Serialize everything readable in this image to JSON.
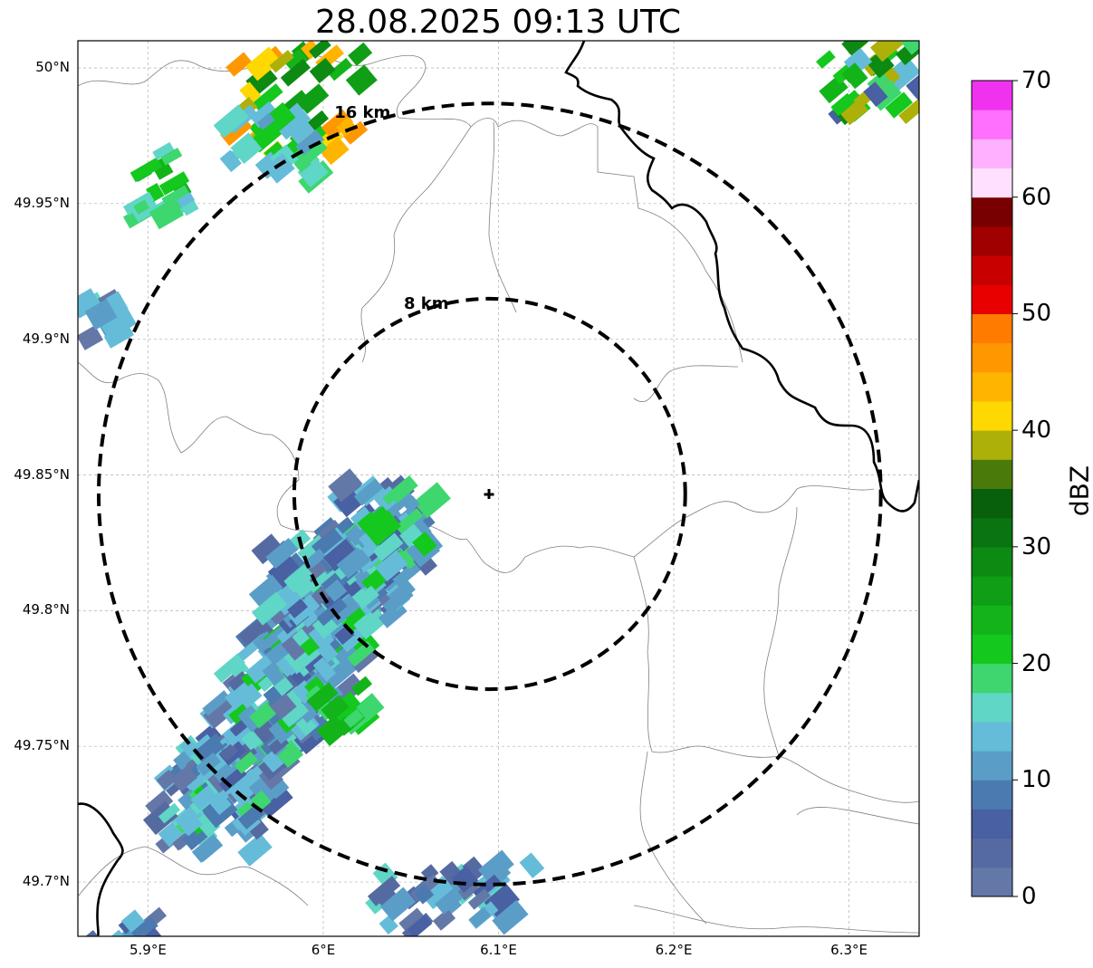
{
  "title": "28.08.2025 09:13 UTC",
  "lat_ticks": [
    {
      "label": "50°N",
      "value": 50.0
    },
    {
      "label": "49.95°N",
      "value": 49.95
    },
    {
      "label": "49.9°N",
      "value": 49.9
    },
    {
      "label": "49.85°N",
      "value": 49.85
    },
    {
      "label": "49.8°N",
      "value": 49.8
    },
    {
      "label": "49.75°N",
      "value": 49.75
    },
    {
      "label": "49.7°N",
      "value": 49.7
    }
  ],
  "lon_ticks": [
    {
      "label": "5.9°E",
      "value": 5.9
    },
    {
      "label": "6°E",
      "value": 6.0
    },
    {
      "label": "6.1°E",
      "value": 6.1
    },
    {
      "label": "6.2°E",
      "value": 6.2
    },
    {
      "label": "6.3°E",
      "value": 6.3
    }
  ],
  "map_extent": {
    "lon_min": 5.86,
    "lon_max": 6.34,
    "lat_min": 49.68,
    "lat_max": 50.01
  },
  "radar_site": {
    "lon": 6.095,
    "lat": 49.843
  },
  "range_rings": [
    {
      "label": "8 km",
      "radius_km": 8
    },
    {
      "label": "16 km",
      "radius_km": 16
    }
  ],
  "colorbar": {
    "unit": "dBZ",
    "min": 0,
    "max": 70,
    "ticks": [
      "0",
      "10",
      "20",
      "30",
      "40",
      "50",
      "60",
      "70"
    ],
    "colors": [
      "#6478a8",
      "#566aa2",
      "#4960a2",
      "#4b7ab0",
      "#5a9ec8",
      "#65bcd8",
      "#5fd6c6",
      "#3ed66e",
      "#14c81e",
      "#12b41a",
      "#0f9e16",
      "#0c8a12",
      "#0a7410",
      "#08600c",
      "#4a7a0a",
      "#aeb00a",
      "#fed800",
      "#ffb400",
      "#ff9800",
      "#ff7c00",
      "#e80000",
      "#c80000",
      "#a00000",
      "#780000",
      "#ffe0ff",
      "#ffb0ff",
      "#ff70ff",
      "#f032f0"
    ]
  }
}
